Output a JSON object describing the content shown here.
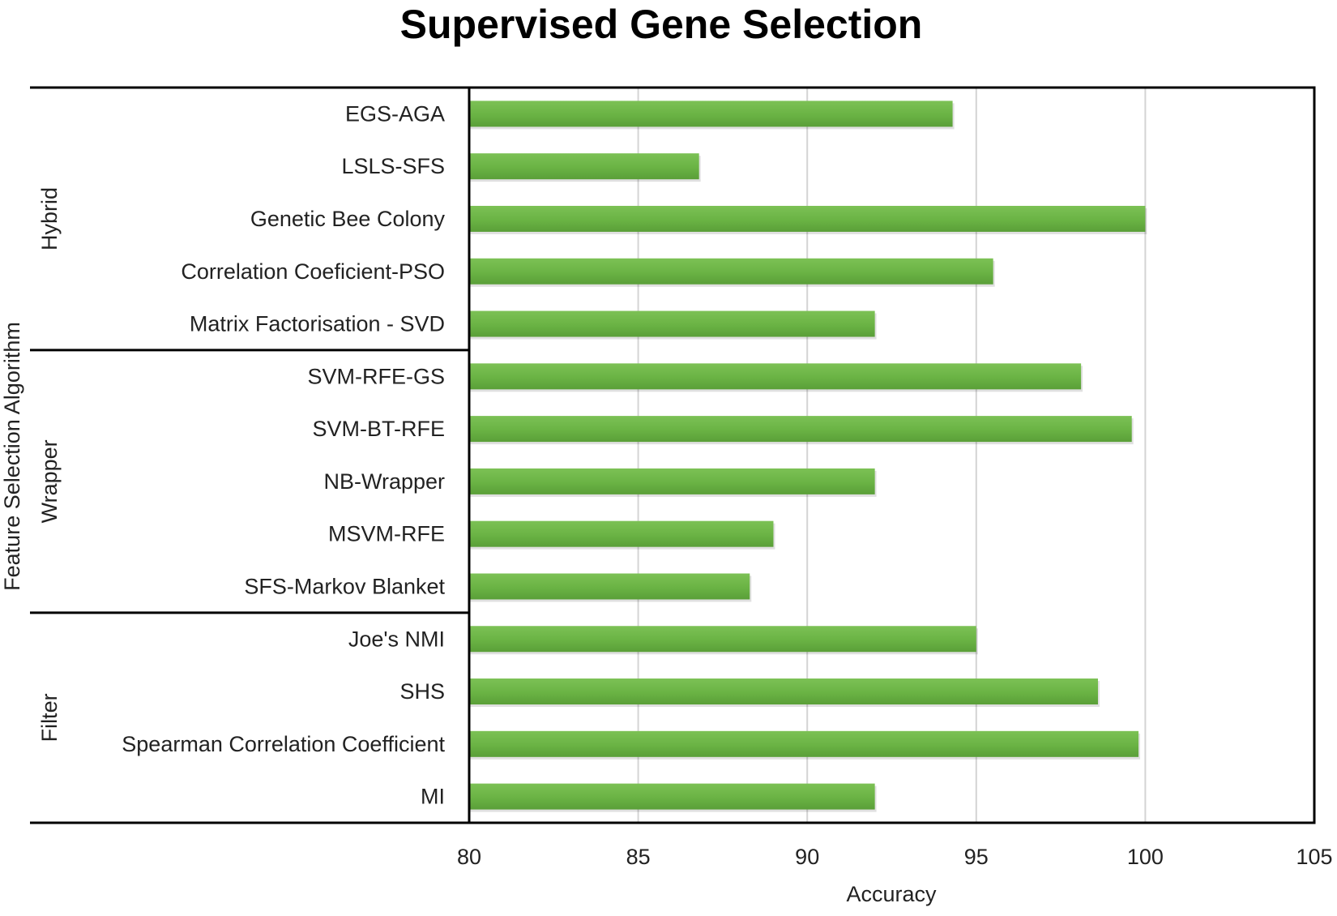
{
  "chart_data": {
    "type": "bar",
    "orientation": "horizontal",
    "title": "Supervised Gene Selection",
    "xlabel": "Accuracy",
    "ylabel": "Feature Selection Algorithm",
    "xlim": [
      80,
      105
    ],
    "xticks": [
      "80",
      "85",
      "90",
      "95",
      "100",
      "105"
    ],
    "grid": "vertical",
    "legend": "none",
    "bar_color": "#6ab344",
    "groups": [
      {
        "name": "Hybrid",
        "categories": [
          "EGS-AGA",
          "LSLS-SFS",
          "Genetic Bee Colony",
          "Correlation Coeficient-PSO",
          "Matrix Factorisation - SVD"
        ]
      },
      {
        "name": "Wrapper",
        "categories": [
          "SVM-RFE-GS",
          "SVM-BT-RFE",
          "NB-Wrapper",
          "MSVM-RFE",
          "SFS-Markov Blanket"
        ]
      },
      {
        "name": "Filter",
        "categories": [
          "Joe's NMI",
          "SHS",
          "Spearman Correlation Coefficient",
          "MI"
        ]
      }
    ],
    "categories": [
      "EGS-AGA",
      "LSLS-SFS",
      "Genetic Bee Colony",
      "Correlation Coeficient-PSO",
      "Matrix Factorisation - SVD",
      "SVM-RFE-GS",
      "SVM-BT-RFE",
      "NB-Wrapper",
      "MSVM-RFE",
      "SFS-Markov Blanket",
      "Joe's NMI",
      "SHS",
      "Spearman Correlation Coefficient",
      "MI"
    ],
    "values": [
      94.3,
      86.8,
      100.0,
      95.5,
      92.0,
      98.1,
      99.6,
      92.0,
      89.0,
      88.3,
      95.0,
      98.6,
      99.8,
      92.0
    ]
  }
}
